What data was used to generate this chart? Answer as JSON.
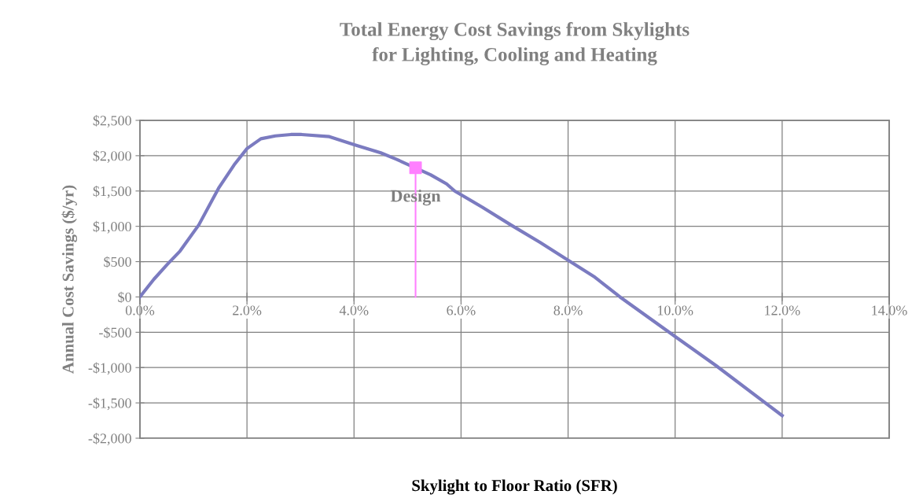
{
  "chart_data": {
    "type": "line",
    "title": "Total Energy Cost Savings from Skylights\nfor Lighting, Cooling and Heating",
    "xlabel": "Skylight to Floor Ratio (SFR)",
    "ylabel": "Annual Cost Savings ($/yr)",
    "series": [
      {
        "color": "#7b7bc0",
        "marker": "none",
        "x": [
          0,
          0.26,
          0.51,
          0.75,
          1.1,
          1.47,
          1.76,
          2.0,
          2.26,
          2.53,
          2.82,
          3.02,
          3.54,
          4.03,
          4.5,
          4.79,
          5.43,
          5.73,
          5.88,
          6.4,
          6.93,
          7.48,
          8.0,
          8.5,
          8.97,
          10.0,
          10.76,
          12.0
        ],
        "values": [
          0,
          250,
          460,
          650,
          1020,
          1540,
          1870,
          2100,
          2240,
          2280,
          2300,
          2300,
          2270,
          2150,
          2040,
          1950,
          1730,
          1600,
          1500,
          1270,
          1020,
          770,
          520,
          280,
          0,
          -560,
          -970,
          -1680
        ]
      },
      {
        "color": "#ff80ff",
        "marker": "none",
        "x": [
          5.15,
          5.15
        ],
        "values": [
          0,
          1830
        ]
      },
      {
        "type": "scatter",
        "color": "#ff80ff",
        "marker": "square",
        "x": [
          5.15
        ],
        "values": [
          1830
        ]
      }
    ],
    "annotations": [
      {
        "text": "Design",
        "x": 5.15,
        "y": 1830
      }
    ],
    "xlim": [
      0,
      14
    ],
    "ylim": [
      -2000,
      2500
    ],
    "xticks": [
      {
        "value": 0,
        "label": "0.0%"
      },
      {
        "value": 2,
        "label": "2.0%"
      },
      {
        "value": 4,
        "label": "4.0%"
      },
      {
        "value": 6,
        "label": "6.0%"
      },
      {
        "value": 8,
        "label": "8.0%"
      },
      {
        "value": 10,
        "label": "10.0%"
      },
      {
        "value": 12,
        "label": "12.0%"
      },
      {
        "value": 14,
        "label": "14.0%"
      }
    ],
    "yticks": [
      {
        "value": -2000,
        "label": "-$2,000"
      },
      {
        "value": -1500,
        "label": "-$1,500"
      },
      {
        "value": -1000,
        "label": "-$1,000"
      },
      {
        "value": -500,
        "label": "-$500"
      },
      {
        "value": 0,
        "label": "$0"
      },
      {
        "value": 500,
        "label": "$500"
      },
      {
        "value": 1000,
        "label": "$1,000"
      },
      {
        "value": 1500,
        "label": "$1,500"
      },
      {
        "value": 2000,
        "label": "$2,000"
      },
      {
        "value": 2500,
        "label": "$2,500"
      }
    ],
    "grid": true,
    "legend": false
  }
}
